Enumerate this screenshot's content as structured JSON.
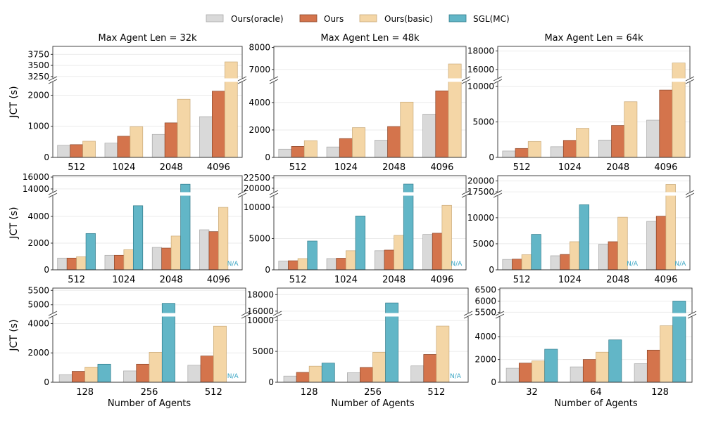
{
  "colors": {
    "oracle": "#d9d9d9",
    "ours": "#d4744c",
    "basic": "#f4d6a6",
    "sgl": "#62b6c7",
    "na": "#3aa6c4"
  },
  "legend": [
    "Ours(oracle)",
    "Ours",
    "Ours(basic)",
    "SGL(MC)"
  ],
  "chart_data": [
    {
      "type": "bar",
      "title": "Max Agent Len = 32k",
      "ylabel": "JCT (s)",
      "xlabel": "",
      "categories": [
        "512",
        "1024",
        "2048",
        "4096"
      ],
      "series": [
        {
          "name": "Ours(oracle)",
          "values": [
            390,
            460,
            740,
            1310
          ]
        },
        {
          "name": "Ours",
          "values": [
            410,
            680,
            1110,
            2130
          ]
        },
        {
          "name": "Ours(basic)",
          "values": [
            520,
            990,
            1870,
            3580
          ]
        }
      ],
      "lower_ylim": [
        0,
        2440
      ],
      "upper_ylim": [
        3200,
        3930
      ],
      "lower_ticks": [
        0,
        1000,
        2000
      ],
      "upper_ticks": [
        3250,
        3500,
        3750
      ]
    },
    {
      "type": "bar",
      "title": "Max Agent Len = 48k",
      "ylabel": "",
      "xlabel": "",
      "categories": [
        "512",
        "1024",
        "2048",
        "4096"
      ],
      "series": [
        {
          "name": "Ours(oracle)",
          "values": [
            600,
            760,
            1250,
            3150
          ]
        },
        {
          "name": "Ours",
          "values": [
            800,
            1370,
            2250,
            4850
          ]
        },
        {
          "name": "Ours(basic)",
          "values": [
            1220,
            2170,
            4030,
            7250
          ]
        }
      ],
      "lower_ylim": [
        0,
        5530
      ],
      "upper_ylim": [
        6580,
        8050
      ],
      "lower_ticks": [
        0,
        2000,
        4000
      ],
      "upper_ticks": [
        7000,
        8000
      ]
    },
    {
      "type": "bar",
      "title": "Max Agent Len = 64k",
      "ylabel": "",
      "xlabel": "",
      "categories": [
        "512",
        "1024",
        "2048",
        "4096"
      ],
      "series": [
        {
          "name": "Ours(oracle)",
          "values": [
            900,
            1500,
            2450,
            5250
          ]
        },
        {
          "name": "Ours",
          "values": [
            1260,
            2400,
            4500,
            9500
          ]
        },
        {
          "name": "Ours(basic)",
          "values": [
            2250,
            4100,
            7850,
            16700
          ]
        }
      ],
      "lower_ylim": [
        0,
        10700
      ],
      "upper_ylim": [
        15000,
        18500
      ],
      "lower_ticks": [
        0,
        5000,
        10000
      ],
      "upper_ticks": [
        16000,
        18000
      ]
    },
    {
      "type": "bar",
      "title": "",
      "ylabel": "JCT (s)",
      "xlabel": "",
      "categories": [
        "512",
        "1024",
        "2048",
        "4096"
      ],
      "series": [
        {
          "name": "Ours(oracle)",
          "values": [
            880,
            1090,
            1680,
            3000
          ]
        },
        {
          "name": "Ours",
          "values": [
            880,
            1090,
            1630,
            2860
          ]
        },
        {
          "name": "Ours(basic)",
          "values": [
            980,
            1510,
            2530,
            4680
          ]
        },
        {
          "name": "SGL(MC)",
          "values": [
            2720,
            4800,
            14800,
            null
          ]
        }
      ],
      "lower_ylim": [
        0,
        5580
      ],
      "upper_ylim": [
        13400,
        16240
      ],
      "lower_ticks": [
        0,
        2000,
        4000
      ],
      "upper_ticks": [
        14000,
        16000
      ],
      "na_label": "N/A"
    },
    {
      "type": "bar",
      "title": "",
      "ylabel": "",
      "xlabel": "",
      "categories": [
        "512",
        "1024",
        "2048",
        "4096"
      ],
      "series": [
        {
          "name": "Ours(oracle)",
          "values": [
            1400,
            1800,
            3050,
            5650
          ]
        },
        {
          "name": "Ours",
          "values": [
            1450,
            1850,
            3150,
            5850
          ]
        },
        {
          "name": "Ours(basic)",
          "values": [
            1800,
            3050,
            5500,
            10300
          ]
        },
        {
          "name": "SGL(MC)",
          "values": [
            4600,
            8600,
            21000,
            null
          ]
        }
      ],
      "lower_ylim": [
        0,
        11900
      ],
      "upper_ylim": [
        19000,
        23000
      ],
      "lower_ticks": [
        0,
        5000,
        10000
      ],
      "upper_ticks": [
        20000,
        22500
      ],
      "na_label": "N/A"
    },
    {
      "type": "bar",
      "title": "",
      "ylabel": "",
      "xlabel": "",
      "categories": [
        "512",
        "1024",
        "2048",
        "4096"
      ],
      "series": [
        {
          "name": "Ours(oracle)",
          "values": [
            2000,
            2700,
            4900,
            9300
          ]
        },
        {
          "name": "Ours",
          "values": [
            2050,
            2950,
            5400,
            10300
          ]
        },
        {
          "name": "Ours(basic)",
          "values": [
            2900,
            5400,
            10100,
            19200
          ]
        },
        {
          "name": "SGL(MC)",
          "values": [
            6800,
            12500,
            null,
            null
          ]
        }
      ],
      "lower_ylim": [
        0,
        14300
      ],
      "upper_ylim": [
        17350,
        21200
      ],
      "lower_ticks": [
        0,
        5000,
        10000
      ],
      "upper_ticks": [
        17500,
        20000
      ],
      "na_label": "N/A"
    },
    {
      "type": "bar",
      "title": "",
      "ylabel": "JCT (s)",
      "xlabel": "Number of Agents",
      "categories": [
        "128",
        "256",
        "512"
      ],
      "series": [
        {
          "name": "Ours(oracle)",
          "values": [
            520,
            770,
            1160
          ]
        },
        {
          "name": "Ours",
          "values": [
            740,
            1230,
            1790
          ]
        },
        {
          "name": "Ours(basic)",
          "values": [
            1030,
            2040,
            3820
          ]
        },
        {
          "name": "SGL(MC)",
          "values": [
            1230,
            5050,
            null
          ]
        }
      ],
      "lower_ylim": [
        0,
        4500
      ],
      "upper_ylim": [
        4700,
        5580
      ],
      "lower_ticks": [
        0,
        2000,
        4000
      ],
      "upper_ticks": [
        5000,
        5500
      ],
      "na_label": "N/A"
    },
    {
      "type": "bar",
      "title": "",
      "ylabel": "",
      "xlabel": "Number of Agents",
      "categories": [
        "128",
        "256",
        "512"
      ],
      "series": [
        {
          "name": "Ours(oracle)",
          "values": [
            1000,
            1550,
            2650
          ]
        },
        {
          "name": "Ours",
          "values": [
            1600,
            2400,
            4500
          ]
        },
        {
          "name": "Ours(basic)",
          "values": [
            2600,
            4850,
            9100
          ]
        },
        {
          "name": "SGL(MC)",
          "values": [
            3100,
            17000,
            null
          ]
        }
      ],
      "lower_ylim": [
        0,
        10700
      ],
      "upper_ylim": [
        15730,
        18800
      ],
      "lower_ticks": [
        0,
        5000,
        10000
      ],
      "upper_ticks": [
        16000,
        18000
      ],
      "na_label": "N/A"
    },
    {
      "type": "bar",
      "title": "",
      "ylabel": "",
      "xlabel": "Number of Agents",
      "categories": [
        "32",
        "64",
        "128"
      ],
      "series": [
        {
          "name": "Ours(oracle)",
          "values": [
            1230,
            1350,
            1630
          ]
        },
        {
          "name": "Ours",
          "values": [
            1680,
            2000,
            2820
          ]
        },
        {
          "name": "Ours(basic)",
          "values": [
            1870,
            2640,
            4960
          ]
        },
        {
          "name": "SGL(MC)",
          "values": [
            2900,
            3720,
            6000
          ]
        }
      ],
      "lower_ylim": [
        0,
        5800
      ],
      "upper_ylim": [
        5450,
        6580
      ],
      "lower_ticks": [
        0,
        2000,
        4000
      ],
      "upper_ticks": [
        5500,
        6000,
        6500
      ]
    }
  ]
}
